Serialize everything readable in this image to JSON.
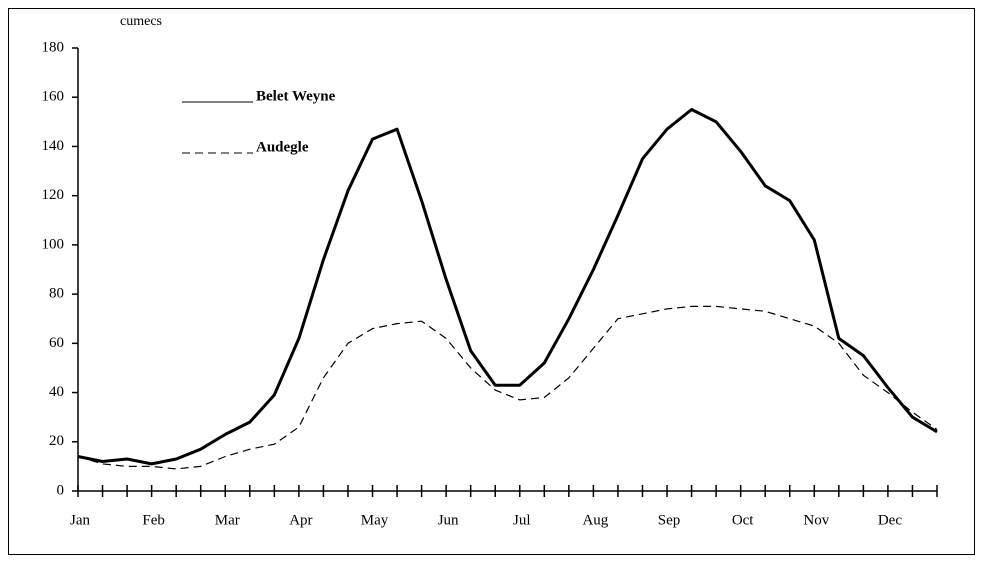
{
  "chart_data": {
    "type": "line",
    "y_label": "cumecs",
    "categories": [
      "Jan",
      null,
      null,
      "Feb",
      null,
      null,
      "Mar",
      null,
      null,
      "Apr",
      null,
      null,
      "May",
      null,
      null,
      "Jun",
      null,
      null,
      "Jul",
      null,
      null,
      "Aug",
      null,
      null,
      "Sep",
      null,
      null,
      "Oct",
      null,
      null,
      "Nov",
      null,
      null,
      "Dec",
      null,
      null
    ],
    "series": [
      {
        "name": "Belet Weyne",
        "color": "#000000",
        "style": "solid",
        "values": [
          14,
          12,
          13,
          11,
          13,
          17,
          23,
          28,
          39,
          62,
          94,
          122,
          143,
          147,
          118,
          86,
          57,
          43,
          43,
          52,
          70,
          90,
          112,
          135,
          147,
          155,
          150,
          138,
          124,
          118,
          102,
          62,
          55,
          42,
          30,
          24
        ]
      },
      {
        "name": "Audegle",
        "color": "#000000",
        "style": "dashed",
        "values": [
          14,
          11,
          10,
          10,
          9,
          10,
          14,
          17,
          19,
          26,
          46,
          60,
          66,
          68,
          69,
          62,
          50,
          41,
          37,
          38,
          46,
          58,
          70,
          72,
          74,
          75,
          75,
          74,
          73,
          70,
          67,
          60,
          47,
          40,
          32,
          25
        ]
      }
    ],
    "ylim": [
      0,
      180
    ],
    "yticks": [
      0,
      20,
      40,
      60,
      80,
      100,
      120,
      140,
      160,
      180
    ],
    "legend": "top-left"
  }
}
